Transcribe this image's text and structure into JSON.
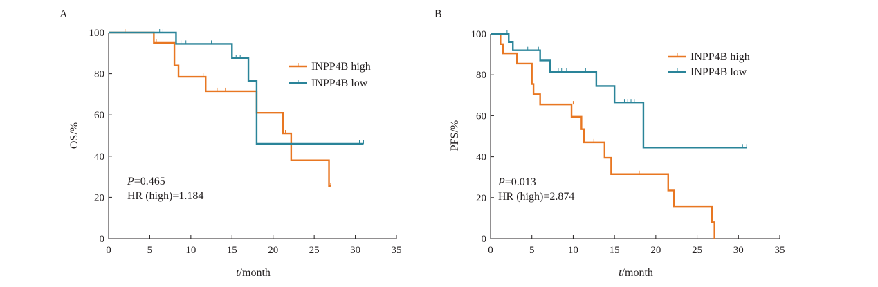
{
  "colors": {
    "high": "#e87722",
    "low": "#2a8499",
    "axis": "#231f20"
  },
  "chart_data": [
    {
      "type": "line",
      "subtype": "kaplan-meier",
      "panel_label": "A",
      "xlabel_italic": "t",
      "xlabel_rest": "/month",
      "ylabel": "OS/%",
      "xlim": [
        0,
        35
      ],
      "ylim": [
        0,
        100
      ],
      "xticks": [
        0,
        5,
        10,
        15,
        20,
        25,
        30,
        35
      ],
      "yticks": [
        0,
        20,
        40,
        60,
        80,
        100
      ],
      "legend": {
        "placement": "top-right",
        "entries": [
          "INPP4B high",
          "INPP4B low"
        ]
      },
      "annotations": {
        "p_italic": "P",
        "p_rest": "=0.465",
        "hr": "HR (high)=1.184"
      },
      "series": [
        {
          "name": "INPP4B high",
          "color_key": "high",
          "steps": [
            [
              0,
              100
            ],
            [
              5.5,
              95
            ],
            [
              8.0,
              84
            ],
            [
              8.5,
              78.5
            ],
            [
              11.8,
              71.5
            ],
            [
              18.0,
              61
            ],
            [
              21.2,
              51
            ],
            [
              22.2,
              38
            ],
            [
              26.8,
              25.5
            ],
            [
              27.0,
              25.5
            ]
          ],
          "censors": [
            [
              2.0,
              100
            ],
            [
              5.8,
              95
            ],
            [
              11.5,
              78.5
            ],
            [
              13.2,
              71.5
            ],
            [
              14.2,
              71.5
            ],
            [
              21.5,
              51
            ],
            [
              27.0,
              25.5
            ]
          ]
        },
        {
          "name": "INPP4B low",
          "color_key": "low",
          "steps": [
            [
              0,
              100
            ],
            [
              8.2,
              94.5
            ],
            [
              15.0,
              87.5
            ],
            [
              17.0,
              76.5
            ],
            [
              18.0,
              46
            ],
            [
              31.0,
              46
            ]
          ],
          "censors": [
            [
              6.2,
              100
            ],
            [
              6.6,
              100
            ],
            [
              8.8,
              94.5
            ],
            [
              9.4,
              94.5
            ],
            [
              12.5,
              94.5
            ],
            [
              15.5,
              87.5
            ],
            [
              16.0,
              87.5
            ],
            [
              30.5,
              46
            ],
            [
              31.0,
              46
            ]
          ]
        }
      ]
    },
    {
      "type": "line",
      "subtype": "kaplan-meier",
      "panel_label": "B",
      "xlabel_italic": "t",
      "xlabel_rest": "/month",
      "ylabel": "PFS/%",
      "xlim": [
        0,
        35
      ],
      "ylim": [
        0,
        100
      ],
      "xticks": [
        0,
        5,
        10,
        15,
        20,
        25,
        30,
        35
      ],
      "yticks": [
        0,
        20,
        40,
        60,
        80,
        100
      ],
      "legend": {
        "placement": "top-right",
        "entries": [
          "INPP4B high",
          "INPP4B low"
        ]
      },
      "annotations": {
        "p_italic": "P",
        "p_rest": "=0.013",
        "hr": "HR (high)=2.874"
      },
      "series": [
        {
          "name": "INPP4B high",
          "color_key": "high",
          "steps": [
            [
              0,
              100
            ],
            [
              1.2,
              95
            ],
            [
              1.5,
              90.5
            ],
            [
              3.2,
              85.5
            ],
            [
              5.0,
              75.5
            ],
            [
              5.2,
              70.5
            ],
            [
              6.0,
              65.5
            ],
            [
              9.8,
              59.5
            ],
            [
              11.0,
              53.5
            ],
            [
              11.3,
              47
            ],
            [
              13.8,
              39.5
            ],
            [
              14.6,
              31.5
            ],
            [
              21.5,
              23.5
            ],
            [
              22.2,
              15.5
            ],
            [
              26.8,
              8
            ],
            [
              27.1,
              0
            ]
          ],
          "censors": [
            [
              10.0,
              65.5
            ],
            [
              12.5,
              47
            ],
            [
              18.0,
              31.5
            ]
          ]
        },
        {
          "name": "INPP4B low",
          "color_key": "low",
          "steps": [
            [
              0,
              100
            ],
            [
              2.2,
              96
            ],
            [
              2.7,
              92
            ],
            [
              6.0,
              87
            ],
            [
              7.2,
              81.5
            ],
            [
              12.8,
              74.5
            ],
            [
              15.0,
              66.5
            ],
            [
              18.5,
              44.5
            ],
            [
              31.0,
              44.5
            ]
          ],
          "censors": [
            [
              2.0,
              100
            ],
            [
              4.5,
              92
            ],
            [
              5.8,
              92
            ],
            [
              8.2,
              81.5
            ],
            [
              8.6,
              81.5
            ],
            [
              9.2,
              81.5
            ],
            [
              11.5,
              81.5
            ],
            [
              16.2,
              66.5
            ],
            [
              16.6,
              66.5
            ],
            [
              17.0,
              66.5
            ],
            [
              17.4,
              66.5
            ],
            [
              30.5,
              44.5
            ],
            [
              31.0,
              44.5
            ]
          ]
        }
      ]
    }
  ]
}
